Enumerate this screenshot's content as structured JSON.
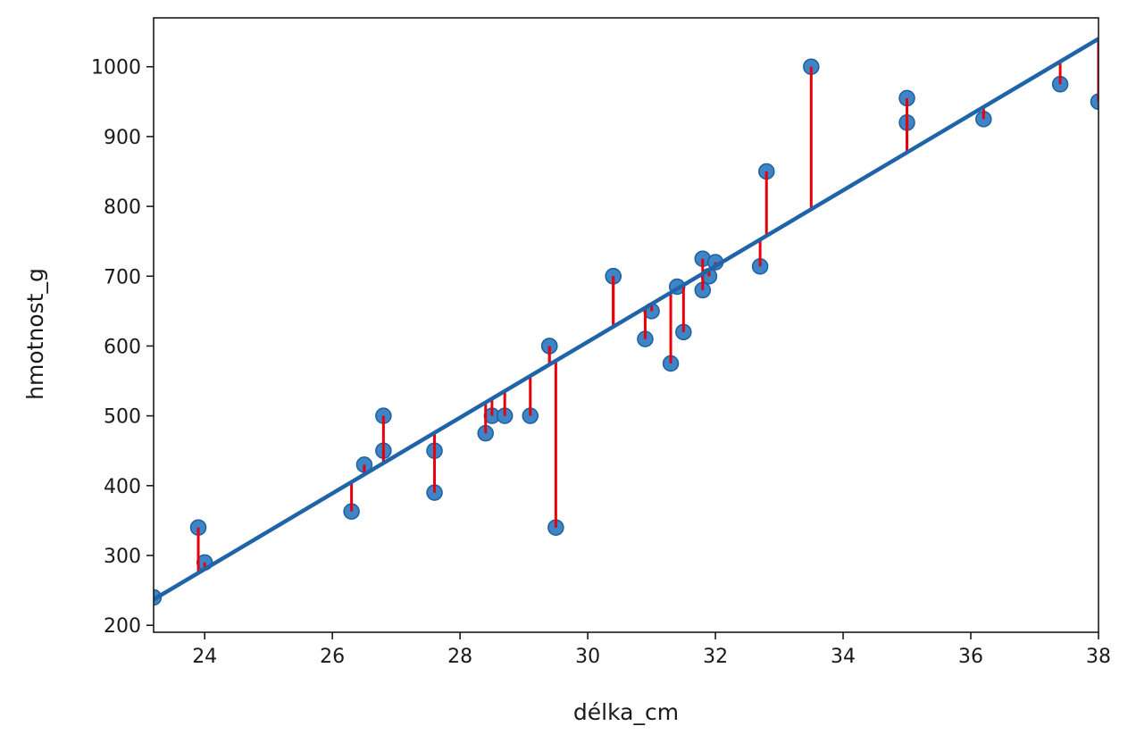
{
  "chart_data": {
    "type": "scatter",
    "xlabel": "délka_cm",
    "ylabel": "hmotnost_g",
    "xlim": [
      23.2,
      38.0
    ],
    "ylim": [
      190,
      1070
    ],
    "xticks": [
      24,
      26,
      28,
      30,
      32,
      34,
      36,
      38
    ],
    "yticks": [
      200,
      300,
      400,
      500,
      600,
      700,
      800,
      900,
      1000
    ],
    "grid": false,
    "point_color": "#3d85c6",
    "point_edge_color": "#1f5f9e",
    "line_color": "#1f64a8",
    "residual_color": "#e8000b",
    "regression_line": {
      "x": [
        23.2,
        38.0
      ],
      "y": [
        237,
        1040
      ]
    },
    "points": [
      {
        "x": 23.2,
        "y": 240
      },
      {
        "x": 23.9,
        "y": 340
      },
      {
        "x": 24.0,
        "y": 290
      },
      {
        "x": 26.3,
        "y": 363
      },
      {
        "x": 26.5,
        "y": 430
      },
      {
        "x": 26.8,
        "y": 450
      },
      {
        "x": 26.8,
        "y": 500
      },
      {
        "x": 27.6,
        "y": 390
      },
      {
        "x": 27.6,
        "y": 450
      },
      {
        "x": 28.4,
        "y": 475
      },
      {
        "x": 28.5,
        "y": 500
      },
      {
        "x": 28.7,
        "y": 500
      },
      {
        "x": 29.1,
        "y": 500
      },
      {
        "x": 29.4,
        "y": 600
      },
      {
        "x": 29.4,
        "y": 600
      },
      {
        "x": 29.5,
        "y": 340
      },
      {
        "x": 30.4,
        "y": 700
      },
      {
        "x": 30.4,
        "y": 700
      },
      {
        "x": 30.9,
        "y": 610
      },
      {
        "x": 31.0,
        "y": 650
      },
      {
        "x": 31.3,
        "y": 575
      },
      {
        "x": 31.4,
        "y": 685
      },
      {
        "x": 31.5,
        "y": 620
      },
      {
        "x": 31.8,
        "y": 680
      },
      {
        "x": 31.8,
        "y": 725
      },
      {
        "x": 31.9,
        "y": 700
      },
      {
        "x": 32.0,
        "y": 720
      },
      {
        "x": 32.7,
        "y": 714
      },
      {
        "x": 32.8,
        "y": 850
      },
      {
        "x": 33.5,
        "y": 1000
      },
      {
        "x": 35.0,
        "y": 920
      },
      {
        "x": 35.0,
        "y": 955
      },
      {
        "x": 36.2,
        "y": 925
      },
      {
        "x": 37.4,
        "y": 975
      },
      {
        "x": 38.0,
        "y": 950
      }
    ]
  }
}
